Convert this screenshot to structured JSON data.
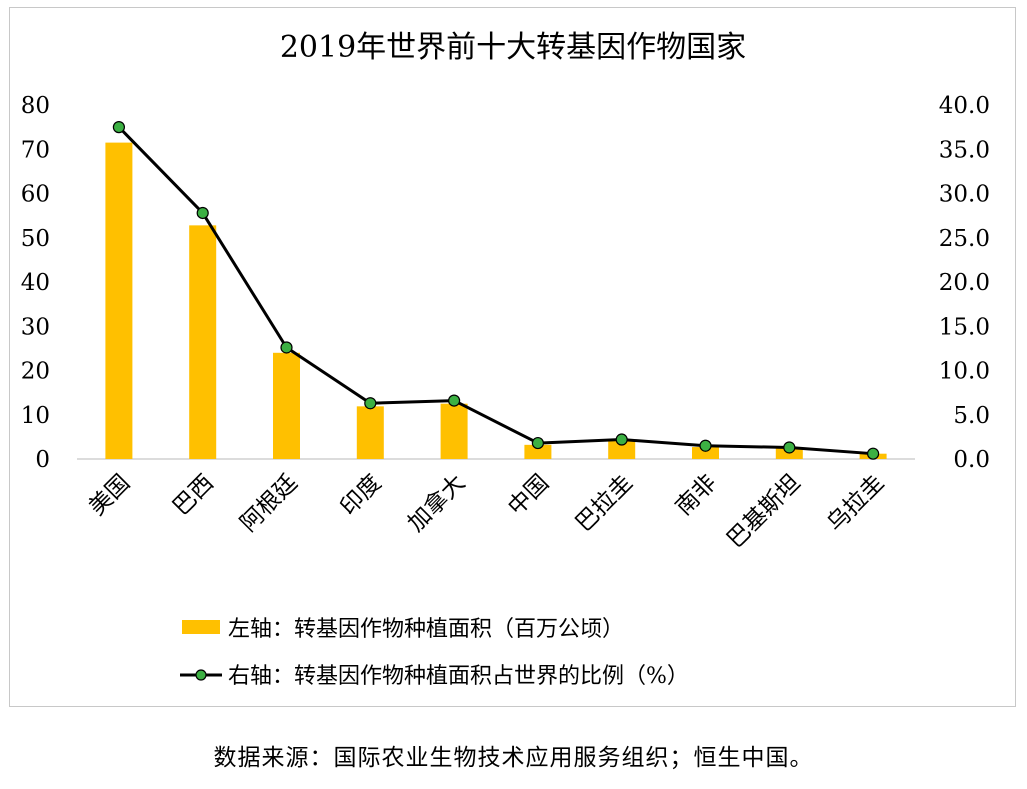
{
  "chart_data": {
    "type": "bar+line",
    "title": "2019年世界前十大转基因作物国家",
    "categories": [
      "美国",
      "巴西",
      "阿根廷",
      "印度",
      "加拿大",
      "中国",
      "巴拉圭",
      "南非",
      "巴基斯坦",
      "乌拉圭"
    ],
    "series": [
      {
        "name": "左轴：转基因作物种植面积（百万公顷）",
        "type": "bar",
        "axis": "left",
        "color": "#FFC000",
        "values": [
          71.5,
          52.8,
          24.0,
          11.9,
          12.5,
          3.2,
          4.1,
          2.7,
          2.5,
          1.2
        ]
      },
      {
        "name": "右轴：转基因作物种植面积占世界的比例（%）",
        "type": "line",
        "axis": "right",
        "color": "#000000",
        "marker_color": "#3CB043",
        "values": [
          37.5,
          27.8,
          12.6,
          6.3,
          6.6,
          1.8,
          2.2,
          1.5,
          1.3,
          0.6
        ]
      }
    ],
    "y_left": {
      "min": 0,
      "max": 80,
      "ticks": [
        "0",
        "10",
        "20",
        "30",
        "40",
        "50",
        "60",
        "70",
        "80"
      ]
    },
    "y_right": {
      "min": 0,
      "max": 40,
      "ticks": [
        "0.0",
        "5.0",
        "10.0",
        "15.0",
        "20.0",
        "25.0",
        "30.0",
        "35.0",
        "40.0"
      ]
    },
    "grid": false,
    "legend_position": "bottom"
  },
  "source_note": "数据来源：国际农业生物技术应用服务组织；恒生中国。"
}
